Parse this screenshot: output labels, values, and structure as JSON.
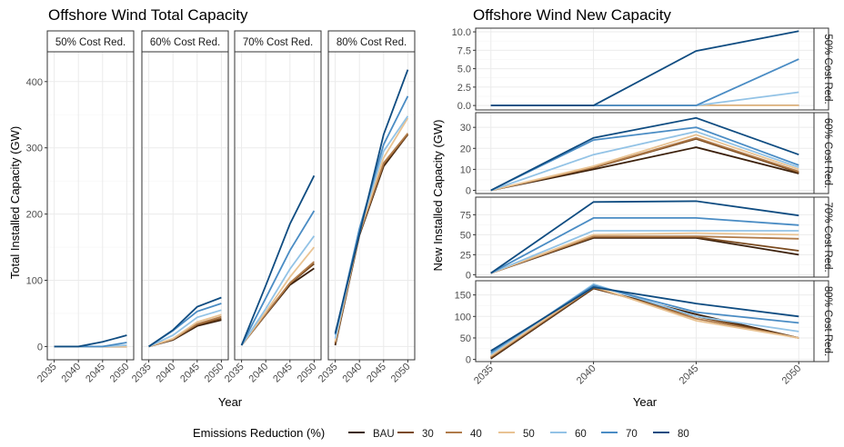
{
  "colors": {
    "BAU": "#3b1f0a",
    "30": "#7a4a1f",
    "40": "#b07b4a",
    "50": "#e9c393",
    "60": "#93c3e6",
    "70": "#4a8cc4",
    "80": "#0f4c81"
  },
  "legend": {
    "title": "Emissions Reduction (%)",
    "entries": [
      "BAU",
      "30",
      "40",
      "50",
      "60",
      "70",
      "80"
    ]
  },
  "chart_data": [
    {
      "type": "line",
      "title": "Offshore Wind Total Capacity",
      "xlabel": "Year",
      "ylabel": "Total Installed Capacity (GW)",
      "ylim": [
        -20,
        445
      ],
      "yticks": [
        0,
        100,
        200,
        300,
        400
      ],
      "x": [
        2035,
        2040,
        2045,
        2050
      ],
      "xtick_labels": [
        "2035",
        "2040",
        "2045",
        "2050"
      ],
      "grid": true,
      "facets": [
        {
          "label": "50% Cost Red.",
          "series": [
            {
              "name": "BAU",
              "values": [
                0,
                0,
                0,
                0
              ]
            },
            {
              "name": "30",
              "values": [
                0,
                0,
                0,
                0
              ]
            },
            {
              "name": "40",
              "values": [
                0,
                0,
                0,
                0
              ]
            },
            {
              "name": "50",
              "values": [
                0,
                0,
                0,
                0
              ]
            },
            {
              "name": "60",
              "values": [
                0,
                0,
                0,
                2
              ]
            },
            {
              "name": "70",
              "values": [
                0,
                0,
                0,
                6
              ]
            },
            {
              "name": "80",
              "values": [
                0,
                0,
                7,
                17
              ]
            }
          ]
        },
        {
          "label": "60% Cost Red.",
          "series": [
            {
              "name": "BAU",
              "values": [
                0,
                10,
                31,
                40
              ]
            },
            {
              "name": "30",
              "values": [
                0,
                11,
                33,
                42
              ]
            },
            {
              "name": "40",
              "values": [
                0,
                11,
                34,
                45
              ]
            },
            {
              "name": "50",
              "values": [
                0,
                12,
                37,
                48
              ]
            },
            {
              "name": "60",
              "values": [
                0,
                17,
                44,
                55
              ]
            },
            {
              "name": "70",
              "values": [
                0,
                24,
                53,
                65
              ]
            },
            {
              "name": "80",
              "values": [
                0,
                25,
                60,
                74
              ]
            }
          ]
        },
        {
          "label": "70% Cost Red.",
          "series": [
            {
              "name": "BAU",
              "values": [
                2,
                48,
                93,
                118
              ]
            },
            {
              "name": "30",
              "values": [
                2,
                49,
                95,
                125
              ]
            },
            {
              "name": "40",
              "values": [
                2,
                49,
                96,
                128
              ]
            },
            {
              "name": "50",
              "values": [
                2,
                52,
                105,
                150
              ]
            },
            {
              "name": "60",
              "values": [
                2,
                57,
                117,
                167
              ]
            },
            {
              "name": "70",
              "values": [
                2,
                73,
                145,
                205
              ]
            },
            {
              "name": "80",
              "values": [
                2,
                92,
                185,
                258
              ]
            }
          ]
        },
        {
          "label": "80% Cost Red.",
          "series": [
            {
              "name": "BAU",
              "values": [
                2,
                168,
                272,
                320
              ]
            },
            {
              "name": "30",
              "values": [
                4,
                170,
                275,
                320
              ]
            },
            {
              "name": "40",
              "values": [
                6,
                170,
                277,
                322
              ]
            },
            {
              "name": "50",
              "values": [
                8,
                172,
                285,
                345
              ]
            },
            {
              "name": "60",
              "values": [
                12,
                175,
                295,
                348
              ]
            },
            {
              "name": "70",
              "values": [
                18,
                178,
                305,
                378
              ]
            },
            {
              "name": "80",
              "values": [
                20,
                170,
                320,
                418
              ]
            }
          ]
        }
      ]
    },
    {
      "type": "line",
      "title": "Offshore Wind New Capacity",
      "xlabel": "Year",
      "ylabel": "New Installed Capacity (GW)",
      "x": [
        2035,
        2040,
        2045,
        2050
      ],
      "xtick_labels": [
        "2035",
        "2040",
        "2045",
        "2050"
      ],
      "grid": true,
      "facets": [
        {
          "label": "50% Cost Red.",
          "ylim": [
            -0.6,
            10.5
          ],
          "yticks": [
            0.0,
            2.5,
            5.0,
            7.5,
            10.0
          ],
          "ytick_labels": [
            "0.0",
            "2.5",
            "5.0",
            "7.5",
            "10.0"
          ],
          "series": [
            {
              "name": "BAU",
              "values": [
                0,
                0,
                0,
                0
              ]
            },
            {
              "name": "30",
              "values": [
                0,
                0,
                0,
                0
              ]
            },
            {
              "name": "40",
              "values": [
                0,
                0,
                0,
                0
              ]
            },
            {
              "name": "50",
              "values": [
                0,
                0,
                0,
                0
              ]
            },
            {
              "name": "60",
              "values": [
                0,
                0,
                0,
                1.8
              ]
            },
            {
              "name": "70",
              "values": [
                0,
                0,
                0,
                6.3
              ]
            },
            {
              "name": "80",
              "values": [
                0,
                0,
                7.4,
                10.1
              ]
            }
          ]
        },
        {
          "label": "60% Cost Red.",
          "ylim": [
            -1.5,
            37
          ],
          "yticks": [
            0,
            10,
            20,
            30
          ],
          "ytick_labels": [
            "0",
            "10",
            "20",
            "30"
          ],
          "series": [
            {
              "name": "BAU",
              "values": [
                0,
                10,
                20.5,
                8
              ]
            },
            {
              "name": "30",
              "values": [
                0,
                10.8,
                24.5,
                8.5
              ]
            },
            {
              "name": "40",
              "values": [
                0,
                11,
                25,
                9
              ]
            },
            {
              "name": "50",
              "values": [
                0,
                11.5,
                26.5,
                10
              ]
            },
            {
              "name": "60",
              "values": [
                0,
                17,
                28,
                11
              ]
            },
            {
              "name": "70",
              "values": [
                0,
                24,
                30,
                12
              ]
            },
            {
              "name": "80",
              "values": [
                0,
                25,
                34.5,
                17
              ]
            }
          ]
        },
        {
          "label": "70% Cost Red.",
          "ylim": [
            -3,
            97
          ],
          "yticks": [
            0,
            25,
            50,
            75
          ],
          "ytick_labels": [
            "0",
            "25",
            "50",
            "75"
          ],
          "series": [
            {
              "name": "BAU",
              "values": [
                2,
                46,
                46,
                25
              ]
            },
            {
              "name": "30",
              "values": [
                2,
                47,
                47,
                30
              ]
            },
            {
              "name": "40",
              "values": [
                2,
                48,
                48,
                45
              ]
            },
            {
              "name": "50",
              "values": [
                2,
                50,
                52,
                50
              ]
            },
            {
              "name": "60",
              "values": [
                2,
                55,
                55,
                55
              ]
            },
            {
              "name": "70",
              "values": [
                2,
                71,
                71,
                62
              ]
            },
            {
              "name": "80",
              "values": [
                2,
                91,
                92,
                74
              ]
            }
          ]
        },
        {
          "label": "80% Cost Red.",
          "ylim": [
            -5,
            183
          ],
          "yticks": [
            0,
            50,
            100,
            150
          ],
          "ytick_labels": [
            "0",
            "50",
            "100",
            "150"
          ],
          "series": [
            {
              "name": "BAU",
              "values": [
                2,
                165,
                105,
                50
              ]
            },
            {
              "name": "30",
              "values": [
                4,
                166,
                100,
                50
              ]
            },
            {
              "name": "40",
              "values": [
                6,
                168,
                95,
                50
              ]
            },
            {
              "name": "50",
              "values": [
                8,
                170,
                90,
                50
              ]
            },
            {
              "name": "60",
              "values": [
                12,
                175,
                100,
                65
              ]
            },
            {
              "name": "70",
              "values": [
                16,
                172,
                110,
                85
              ]
            },
            {
              "name": "80",
              "values": [
                20,
                168,
                130,
                100
              ]
            }
          ]
        }
      ]
    }
  ]
}
